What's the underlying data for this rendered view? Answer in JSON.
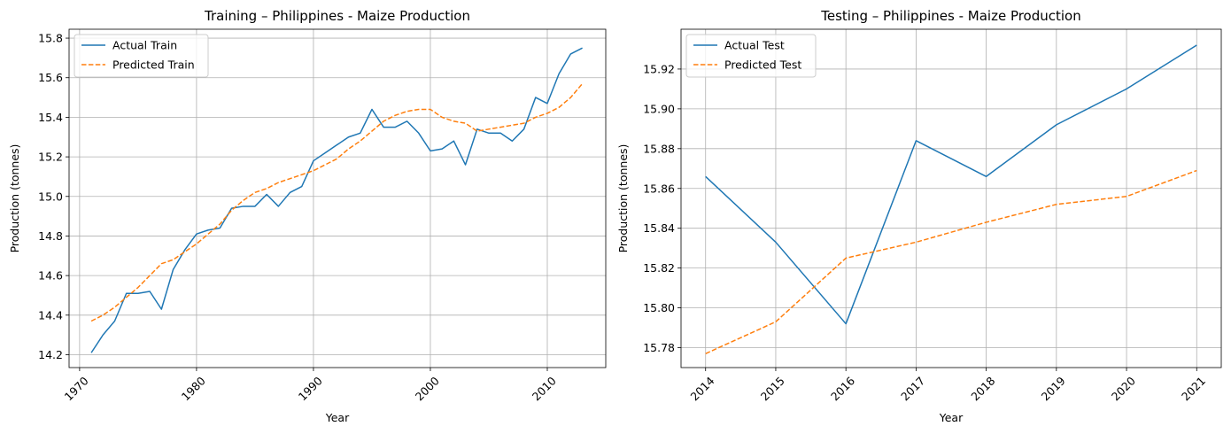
{
  "chart_data": [
    {
      "type": "line",
      "title": "Training – Philippines - Maize Production",
      "xlabel": "Year",
      "ylabel": "Production (tonnes)",
      "xlim": [
        1969.1,
        2015.0
      ],
      "ylim": [
        14.135,
        15.845
      ],
      "xticks": [
        1970,
        1980,
        1990,
        2000,
        2010
      ],
      "yticks": [
        14.2,
        14.4,
        14.6,
        14.8,
        15.0,
        15.2,
        15.4,
        15.6,
        15.8
      ],
      "ytick_labels": [
        "14.2",
        "14.4",
        "14.6",
        "14.8",
        "15.0",
        "15.2",
        "15.4",
        "15.6",
        "15.8"
      ],
      "grid": true,
      "legend_position": "upper-left",
      "x": [
        1971,
        1972,
        1973,
        1974,
        1975,
        1976,
        1977,
        1978,
        1979,
        1980,
        1981,
        1982,
        1983,
        1984,
        1985,
        1986,
        1987,
        1988,
        1989,
        1990,
        1991,
        1992,
        1993,
        1994,
        1995,
        1996,
        1997,
        1998,
        1999,
        2000,
        2001,
        2002,
        2003,
        2004,
        2005,
        2006,
        2007,
        2008,
        2009,
        2010,
        2011,
        2012,
        2013
      ],
      "series": [
        {
          "name": "Actual Train",
          "color": "#1f77b4",
          "dash": "solid",
          "values": [
            14.21,
            14.3,
            14.37,
            14.51,
            14.51,
            14.52,
            14.43,
            14.63,
            14.73,
            14.81,
            14.83,
            14.84,
            14.94,
            14.95,
            14.95,
            15.01,
            14.95,
            15.02,
            15.05,
            15.18,
            15.22,
            15.26,
            15.3,
            15.32,
            15.44,
            15.35,
            15.35,
            15.38,
            15.32,
            15.23,
            15.24,
            15.28,
            15.16,
            15.34,
            15.32,
            15.32,
            15.28,
            15.34,
            15.5,
            15.47,
            15.62,
            15.72,
            15.75
          ]
        },
        {
          "name": "Predicted Train",
          "color": "#ff7f0e",
          "dash": "dashed",
          "values": [
            14.37,
            14.4,
            14.44,
            14.49,
            14.54,
            14.6,
            14.66,
            14.68,
            14.72,
            14.76,
            14.81,
            14.86,
            14.93,
            14.98,
            15.02,
            15.04,
            15.07,
            15.09,
            15.11,
            15.13,
            15.16,
            15.19,
            15.24,
            15.28,
            15.33,
            15.38,
            15.41,
            15.43,
            15.44,
            15.44,
            15.4,
            15.38,
            15.37,
            15.33,
            15.34,
            15.35,
            15.36,
            15.37,
            15.4,
            15.42,
            15.45,
            15.5,
            15.57
          ]
        }
      ]
    },
    {
      "type": "line",
      "title": "Testing – Philippines - Maize Production",
      "xlabel": "Year",
      "ylabel": "Production (tonnes)",
      "xlim": [
        2013.65,
        2021.35
      ],
      "ylim": [
        15.77,
        15.94
      ],
      "xticks": [
        2014,
        2015,
        2016,
        2017,
        2018,
        2019,
        2020,
        2021
      ],
      "yticks": [
        15.78,
        15.8,
        15.82,
        15.84,
        15.86,
        15.88,
        15.9,
        15.92
      ],
      "ytick_labels": [
        "15.78",
        "15.80",
        "15.82",
        "15.84",
        "15.86",
        "15.88",
        "15.90",
        "15.92"
      ],
      "grid": true,
      "legend_position": "upper-left",
      "x": [
        2014,
        2015,
        2016,
        2017,
        2018,
        2019,
        2020,
        2021
      ],
      "series": [
        {
          "name": "Actual Test",
          "color": "#1f77b4",
          "dash": "solid",
          "values": [
            15.866,
            15.833,
            15.792,
            15.884,
            15.866,
            15.892,
            15.91,
            15.932
          ]
        },
        {
          "name": "Predicted Test",
          "color": "#ff7f0e",
          "dash": "dashed",
          "values": [
            15.777,
            15.793,
            15.825,
            15.833,
            15.843,
            15.852,
            15.856,
            15.869
          ]
        }
      ]
    }
  ]
}
